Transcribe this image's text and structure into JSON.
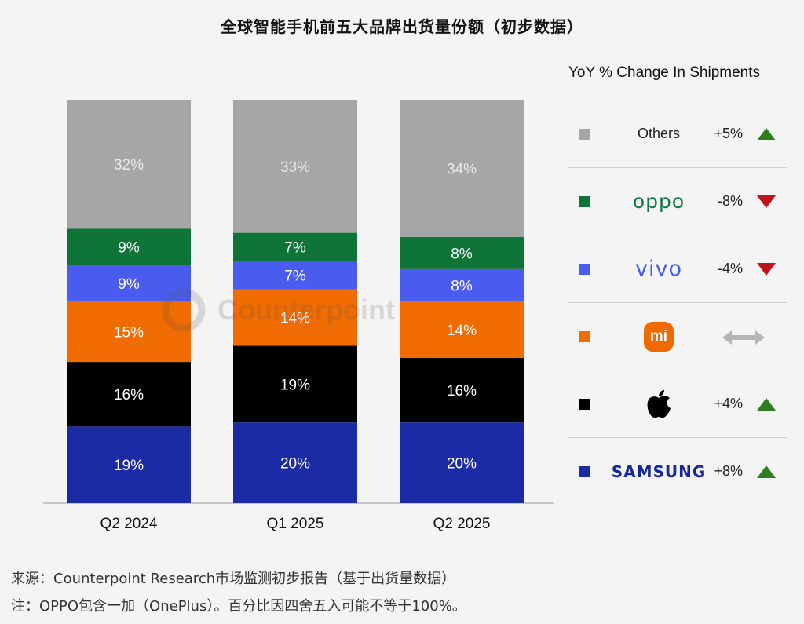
{
  "page": {
    "title": "全球智能手机前五大品牌出货量份额（初步数据）",
    "source": "来源：Counterpoint Research市场监测初步报告（基于出货量数据）",
    "note": "注：OPPO包含一加（OnePlus）。百分比因四舍五入可能不等于100%。",
    "watermark": "Counterpoint"
  },
  "chart_data": {
    "type": "bar",
    "stacked": true,
    "title": "全球智能手机前五大品牌出货量份额（初步数据）",
    "categories": [
      "Q2 2024",
      "Q1 2025",
      "Q2 2025"
    ],
    "series": [
      {
        "name": "SAMSUNG",
        "color": "#1b2ba6",
        "values": [
          19,
          20,
          20
        ],
        "labels": [
          "19%",
          "20%",
          "20%"
        ]
      },
      {
        "name": "Apple",
        "color": "#000000",
        "values": [
          16,
          19,
          16
        ],
        "labels": [
          "16%",
          "19%",
          "16%"
        ]
      },
      {
        "name": "Xiaomi",
        "color": "#f06b00",
        "values": [
          15,
          14,
          14
        ],
        "labels": [
          "15%",
          "14%",
          "14%"
        ]
      },
      {
        "name": "vivo",
        "color": "#4a5cf0",
        "values": [
          9,
          7,
          8
        ],
        "labels": [
          "9%",
          "7%",
          "8%"
        ]
      },
      {
        "name": "OPPO",
        "color": "#0f7438",
        "values": [
          9,
          7,
          8
        ],
        "labels": [
          "9%",
          "7%",
          "8%"
        ]
      },
      {
        "name": "Others",
        "color": "#a6a6a6",
        "values": [
          32,
          33,
          34
        ],
        "labels": [
          "32%",
          "33%",
          "34%"
        ]
      }
    ],
    "ylim": [
      0,
      100
    ],
    "grid": false,
    "legend_position": "right"
  },
  "legend": {
    "title": "YoY % Change In Shipments",
    "items": [
      {
        "brand": "Others",
        "logo": "text",
        "change": "+5%",
        "trend": "up",
        "color": "#a6a6a6"
      },
      {
        "brand": "oppo",
        "logo": "oppo-wordmark",
        "change": "-8%",
        "trend": "down",
        "color": "#0f7438"
      },
      {
        "brand": "vivo",
        "logo": "vivo-wordmark",
        "change": "-4%",
        "trend": "down",
        "color": "#4a5cf0"
      },
      {
        "brand": "mi",
        "logo": "xiaomi-icon",
        "change": "",
        "trend": "flat",
        "color": "#f06b00"
      },
      {
        "brand": "",
        "logo": "apple-icon",
        "change": "+4%",
        "trend": "up",
        "color": "#000000"
      },
      {
        "brand": "SAMSUNG",
        "logo": "samsung-wordmark",
        "change": "+8%",
        "trend": "up",
        "color": "#1b2ba6"
      }
    ]
  }
}
